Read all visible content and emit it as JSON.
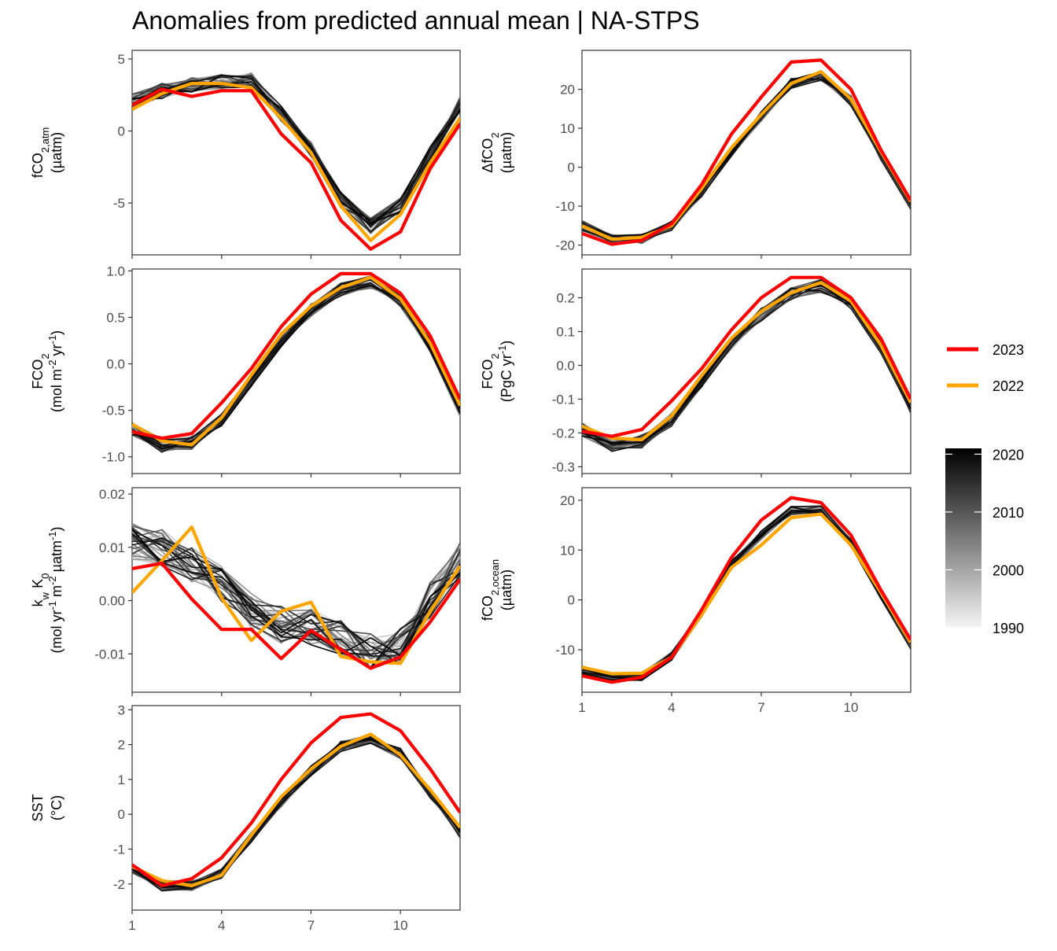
{
  "title": "Anomalies from predicted annual mean | NA-STPS",
  "colors": {
    "year_2023": "#ff0000",
    "year_2022": "#ffa500",
    "history_dark": "#000000",
    "history_light": "#f2f2f2"
  },
  "chart_data": [
    {
      "id": "fco2_atm",
      "type": "line",
      "ylabel_parts": [
        [
          "fCO",
          "normal"
        ],
        [
          "2,atm",
          "sub"
        ]
      ],
      "yunit": "(µatm)",
      "ylim": [
        -8.6,
        5.6
      ],
      "yticks": [
        5,
        0,
        -5
      ],
      "ytick_labels": [
        "5",
        "0",
        "-5"
      ],
      "xlim": [
        1,
        12
      ],
      "xticks": [
        1,
        4,
        7,
        10
      ],
      "xtick_labels": [
        "1",
        "4",
        "7",
        "10"
      ],
      "x": [
        1,
        2,
        3,
        4,
        5,
        6,
        7,
        8,
        9,
        10,
        11,
        12
      ],
      "series": [
        {
          "name": "2023",
          "values": [
            1.8,
            2.9,
            2.4,
            2.8,
            2.8,
            -0.2,
            -2.2,
            -6.2,
            -8.2,
            -7.0,
            -2.6,
            0.5
          ]
        },
        {
          "name": "2022",
          "values": [
            1.5,
            2.6,
            3.3,
            3.3,
            3.0,
            0.9,
            -1.5,
            -5.2,
            -7.6,
            -5.8,
            -2.2,
            0.9
          ]
        }
      ],
      "history_template": [
        2.0,
        2.8,
        3.2,
        3.4,
        3.5,
        1.2,
        -1.3,
        -4.8,
        -6.6,
        -5.2,
        -1.6,
        1.9
      ],
      "history_noise": 0.55
    },
    {
      "id": "dfco2",
      "type": "line",
      "ylabel_parts": [
        [
          "ΔfCO",
          "normal"
        ],
        [
          "2",
          "sub"
        ]
      ],
      "yunit": "(µatm)",
      "ylim": [
        -22.5,
        30
      ],
      "yticks": [
        20,
        10,
        0,
        -10,
        -20
      ],
      "ytick_labels": [
        "20",
        "10",
        "0",
        "-10",
        "-20"
      ],
      "xlim": [
        1,
        12
      ],
      "xticks": [
        1,
        4,
        7,
        10
      ],
      "xtick_labels": [
        "1",
        "4",
        "7",
        "10"
      ],
      "x": [
        1,
        2,
        3,
        4,
        5,
        6,
        7,
        8,
        9,
        10,
        11,
        12
      ],
      "series": [
        {
          "name": "2023",
          "values": [
            -17,
            -19.8,
            -18.8,
            -14.5,
            -4.5,
            8.5,
            18.0,
            27.0,
            27.5,
            20.0,
            4.5,
            -8.5
          ]
        },
        {
          "name": "2022",
          "values": [
            -15,
            -18.5,
            -18,
            -15,
            -5.5,
            5.0,
            13.5,
            21.5,
            24.5,
            17.5,
            4.0,
            -8.8
          ]
        }
      ],
      "history_template": [
        -15,
        -18.5,
        -18.3,
        -15,
        -6.5,
        4.0,
        13.0,
        21.5,
        23.5,
        17.0,
        3.0,
        -9.5
      ],
      "history_noise": 1.3
    },
    {
      "id": "fco2_flux",
      "type": "line",
      "ylabel_parts": [
        [
          "FCO",
          "normal"
        ],
        [
          "2",
          "sub"
        ]
      ],
      "yunit_parts": [
        [
          "(mol m",
          "normal"
        ],
        [
          "-2",
          "sup"
        ],
        [
          " yr",
          "normal"
        ],
        [
          "-1",
          "sup"
        ],
        [
          ")",
          "normal"
        ]
      ],
      "ylim": [
        -1.18,
        1.02
      ],
      "yticks": [
        1.0,
        0.5,
        0.0,
        -0.5,
        -1.0
      ],
      "ytick_labels": [
        "1.0",
        "0.5",
        "0.0",
        "-0.5",
        "-1.0"
      ],
      "xlim": [
        1,
        12
      ],
      "xticks": [
        1,
        4,
        7,
        10
      ],
      "xtick_labels": [
        "1",
        "4",
        "7",
        "10"
      ],
      "x": [
        1,
        2,
        3,
        4,
        5,
        6,
        7,
        8,
        9,
        10,
        11,
        12
      ],
      "series": [
        {
          "name": "2023",
          "values": [
            -0.73,
            -0.8,
            -0.75,
            -0.42,
            -0.05,
            0.4,
            0.75,
            0.97,
            0.97,
            0.76,
            0.3,
            -0.38
          ]
        },
        {
          "name": "2022",
          "values": [
            -0.65,
            -0.83,
            -0.87,
            -0.58,
            -0.12,
            0.32,
            0.62,
            0.82,
            0.93,
            0.7,
            0.22,
            -0.45
          ]
        }
      ],
      "history_template": [
        -0.7,
        -0.88,
        -0.85,
        -0.6,
        -0.18,
        0.25,
        0.58,
        0.8,
        0.88,
        0.68,
        0.2,
        -0.5
      ],
      "history_noise": 0.07
    },
    {
      "id": "fco2_flux_pgc",
      "type": "line",
      "ylabel_parts": [
        [
          "FCO",
          "normal"
        ],
        [
          "2",
          "sub"
        ]
      ],
      "yunit_parts": [
        [
          "(PgC yr",
          "normal"
        ],
        [
          "-1",
          "sup"
        ],
        [
          ")",
          "normal"
        ]
      ],
      "ylim": [
        -0.32,
        0.285
      ],
      "yticks": [
        0.2,
        0.1,
        0.0,
        -0.1,
        -0.2,
        -0.3
      ],
      "ytick_labels": [
        "0.2",
        "0.1",
        "0.0",
        "-0.1",
        "-0.2",
        "-0.3"
      ],
      "xlim": [
        1,
        12
      ],
      "xticks": [
        1,
        4,
        7,
        10
      ],
      "xtick_labels": [
        "1",
        "4",
        "7",
        "10"
      ],
      "x": [
        1,
        2,
        3,
        4,
        5,
        6,
        7,
        8,
        9,
        10,
        11,
        12
      ],
      "series": [
        {
          "name": "2023",
          "values": [
            -0.195,
            -0.21,
            -0.19,
            -0.105,
            -0.01,
            0.105,
            0.2,
            0.26,
            0.26,
            0.2,
            0.08,
            -0.1
          ]
        },
        {
          "name": "2022",
          "values": [
            -0.18,
            -0.215,
            -0.22,
            -0.15,
            -0.03,
            0.08,
            0.16,
            0.215,
            0.245,
            0.19,
            0.06,
            -0.11
          ]
        }
      ],
      "history_template": [
        -0.19,
        -0.235,
        -0.225,
        -0.16,
        -0.045,
        0.065,
        0.15,
        0.21,
        0.235,
        0.185,
        0.055,
        -0.125
      ],
      "history_noise": 0.02
    },
    {
      "id": "kw_k0",
      "type": "line",
      "ylabel_parts": [
        [
          "k",
          "normal"
        ],
        [
          "w",
          "sub"
        ],
        [
          " K",
          "normal"
        ],
        [
          "0",
          "sub"
        ]
      ],
      "yunit_parts": [
        [
          "(mol yr",
          "normal"
        ],
        [
          "-1",
          "sup"
        ],
        [
          " m",
          "normal"
        ],
        [
          "-2",
          "sup"
        ],
        [
          " µatm",
          "normal"
        ],
        [
          "-1",
          "sup"
        ],
        [
          ")",
          "normal"
        ]
      ],
      "ylim": [
        -0.0172,
        0.0212
      ],
      "yticks": [
        0.02,
        0.01,
        0.0,
        -0.01
      ],
      "ytick_labels": [
        "0.02",
        "0.01",
        "0.00",
        "-0.01"
      ],
      "xlim": [
        1,
        12
      ],
      "xticks": [
        1,
        4,
        7,
        10
      ],
      "xtick_labels": [
        "1",
        "4",
        "7",
        "10"
      ],
      "x": [
        1,
        2,
        3,
        4,
        5,
        6,
        7,
        8,
        9,
        10,
        11,
        12
      ],
      "series": [
        {
          "name": "2023",
          "values": [
            0.006,
            0.007,
            0.0003,
            -0.0054,
            -0.0054,
            -0.0109,
            -0.0056,
            -0.0092,
            -0.0127,
            -0.0106,
            -0.004,
            0.004
          ]
        },
        {
          "name": "2022",
          "values": [
            0.0015,
            0.0075,
            0.0138,
            0.0005,
            -0.0075,
            -0.002,
            -0.0003,
            -0.0105,
            -0.0115,
            -0.0118,
            -0.002,
            0.0065
          ]
        }
      ],
      "history_template": [
        0.011,
        0.01,
        0.007,
        0.003,
        -0.002,
        -0.0045,
        -0.005,
        -0.007,
        -0.0095,
        -0.0085,
        0.0,
        0.0075
      ],
      "history_noise": 0.0035
    },
    {
      "id": "fco2_ocean",
      "type": "line",
      "ylabel_parts": [
        [
          "fCO",
          "normal"
        ],
        [
          "2,ocean",
          "sub"
        ]
      ],
      "yunit": "(µatm)",
      "ylim": [
        -18.5,
        22.5
      ],
      "yticks": [
        20,
        10,
        0,
        -10
      ],
      "ytick_labels": [
        "20",
        "10",
        "0",
        "-10"
      ],
      "xlim": [
        1,
        12
      ],
      "xticks": [
        1,
        4,
        7,
        10
      ],
      "xtick_labels": [
        "1",
        "4",
        "7",
        "10"
      ],
      "x": [
        1,
        2,
        3,
        4,
        5,
        6,
        7,
        8,
        9,
        10,
        11,
        12
      ],
      "series": [
        {
          "name": "2023",
          "values": [
            -15.2,
            -16.5,
            -15.5,
            -11.5,
            -2.0,
            8.5,
            16.0,
            20.5,
            19.5,
            13.0,
            2.0,
            -8.0
          ]
        },
        {
          "name": "2022",
          "values": [
            -13.5,
            -14.8,
            -14.7,
            -11.5,
            -3.0,
            6.5,
            11.0,
            16.5,
            17.2,
            11.0,
            1.5,
            -8.5
          ]
        }
      ],
      "history_template": [
        -14,
        -15.5,
        -15.3,
        -11.2,
        -2.5,
        7.0,
        13.0,
        18.0,
        18.0,
        11.5,
        1.0,
        -9.0
      ],
      "history_noise": 0.9
    },
    {
      "id": "sst",
      "type": "line",
      "ylabel_parts": [
        [
          "SST",
          "normal"
        ]
      ],
      "yunit": "(°C)",
      "ylim": [
        -2.75,
        3.12
      ],
      "yticks": [
        3,
        2,
        1,
        0,
        -1,
        -2
      ],
      "ytick_labels": [
        "3",
        "2",
        "1",
        "0",
        "-1",
        "-2"
      ],
      "xlim": [
        1,
        12
      ],
      "xticks": [
        1,
        4,
        7,
        10
      ],
      "xtick_labels": [
        "1",
        "4",
        "7",
        "10"
      ],
      "x": [
        1,
        2,
        3,
        4,
        5,
        6,
        7,
        8,
        9,
        10,
        11,
        12
      ],
      "series": [
        {
          "name": "2023",
          "values": [
            -1.45,
            -2.05,
            -1.85,
            -1.25,
            -0.25,
            1.0,
            2.05,
            2.78,
            2.88,
            2.4,
            1.3,
            0.05
          ]
        },
        {
          "name": "2022",
          "values": [
            -1.5,
            -1.9,
            -2.05,
            -1.75,
            -0.6,
            0.5,
            1.3,
            1.95,
            2.3,
            1.7,
            0.7,
            -0.38
          ]
        }
      ],
      "history_template": [
        -1.55,
        -2.05,
        -2.05,
        -1.7,
        -0.65,
        0.35,
        1.25,
        1.95,
        2.15,
        1.75,
        0.6,
        -0.55
      ],
      "history_noise": 0.15
    }
  ],
  "legend": {
    "items": [
      {
        "label": "2023",
        "color": "#ff0000"
      },
      {
        "label": "2022",
        "color": "#ffa500"
      }
    ],
    "colorbar": {
      "labels": [
        "2020",
        "2010",
        "2000",
        "1990"
      ],
      "values": [
        2020,
        2010,
        2000,
        1990
      ],
      "range": [
        1990,
        2021
      ]
    }
  }
}
